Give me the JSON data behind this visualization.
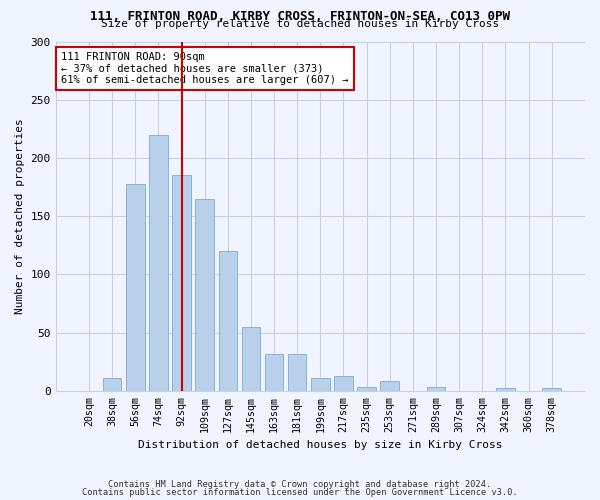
{
  "title1": "111, FRINTON ROAD, KIRBY CROSS, FRINTON-ON-SEA, CO13 0PW",
  "title2": "Size of property relative to detached houses in Kirby Cross",
  "xlabel": "Distribution of detached houses by size in Kirby Cross",
  "ylabel": "Number of detached properties",
  "categories": [
    "20sqm",
    "38sqm",
    "56sqm",
    "74sqm",
    "92sqm",
    "109sqm",
    "127sqm",
    "145sqm",
    "163sqm",
    "181sqm",
    "199sqm",
    "217sqm",
    "235sqm",
    "253sqm",
    "271sqm",
    "289sqm",
    "307sqm",
    "324sqm",
    "342sqm",
    "360sqm",
    "378sqm"
  ],
  "values": [
    0,
    11,
    178,
    220,
    185,
    165,
    120,
    55,
    32,
    32,
    11,
    13,
    3,
    8,
    0,
    3,
    0,
    0,
    2,
    0,
    2
  ],
  "bar_color": "#b8d0ea",
  "bar_edge_color": "#7aadd4",
  "vline_color": "#cc0000",
  "vline_x_index": 4,
  "annotation_text": "111 FRINTON ROAD: 90sqm\n← 37% of detached houses are smaller (373)\n61% of semi-detached houses are larger (607) →",
  "annotation_box_color": "#ffffff",
  "annotation_box_edge": "#cc0000",
  "ylim": [
    0,
    300
  ],
  "yticks": [
    0,
    50,
    100,
    150,
    200,
    250,
    300
  ],
  "footer1": "Contains HM Land Registry data © Crown copyright and database right 2024.",
  "footer2": "Contains public sector information licensed under the Open Government Licence v3.0.",
  "bg_color": "#f0f4ff",
  "grid_color": "#c8d0e8"
}
